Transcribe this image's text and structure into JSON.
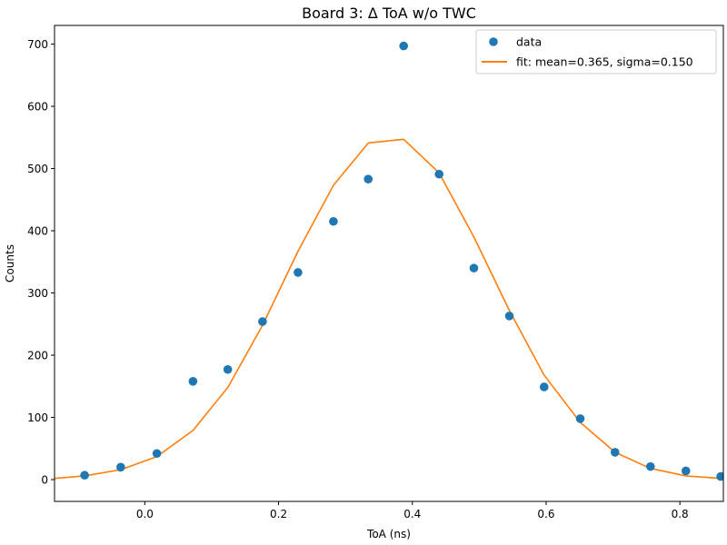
{
  "chart_data": {
    "type": "scatter",
    "title": "Board 3: Δ ToA w/o TWC",
    "xlabel": "ToA (ns)",
    "ylabel": "Counts",
    "xlim": [
      -0.135,
      0.865
    ],
    "ylim": [
      -35,
      730
    ],
    "xticks": [
      0.0,
      0.2,
      0.4,
      0.6,
      0.8
    ],
    "xtick_labels": [
      "0.0",
      "0.2",
      "0.4",
      "0.6",
      "0.8"
    ],
    "yticks": [
      0,
      100,
      200,
      300,
      400,
      500,
      600,
      700
    ],
    "ytick_labels": [
      "0",
      "100",
      "200",
      "300",
      "400",
      "500",
      "600",
      "700"
    ],
    "grid": false,
    "legend_position": "top-right",
    "series": [
      {
        "name": "data",
        "kind": "scatter",
        "color": "#1f77b4",
        "x": [
          -0.09,
          -0.036,
          0.018,
          0.072,
          0.124,
          0.176,
          0.229,
          0.282,
          0.334,
          0.387,
          0.44,
          0.492,
          0.545,
          0.597,
          0.651,
          0.703,
          0.756,
          0.809,
          0.861
        ],
        "y": [
          7,
          20,
          42,
          158,
          177,
          254,
          333,
          415,
          483,
          697,
          491,
          340,
          263,
          149,
          98,
          44,
          21,
          14,
          5
        ]
      },
      {
        "name": "fit: mean=0.365, sigma=0.150",
        "kind": "line",
        "color": "#ff7f0e",
        "x": [
          -0.135,
          -0.09,
          -0.036,
          0.018,
          0.072,
          0.124,
          0.176,
          0.229,
          0.282,
          0.334,
          0.387,
          0.44,
          0.492,
          0.545,
          0.597,
          0.651,
          0.703,
          0.756,
          0.809,
          0.861
        ],
        "y": [
          2,
          6,
          16,
          37,
          79,
          148,
          248,
          367,
          473,
          541,
          547,
          493,
          390,
          272,
          168,
          92,
          44,
          18,
          6,
          2
        ]
      }
    ]
  }
}
